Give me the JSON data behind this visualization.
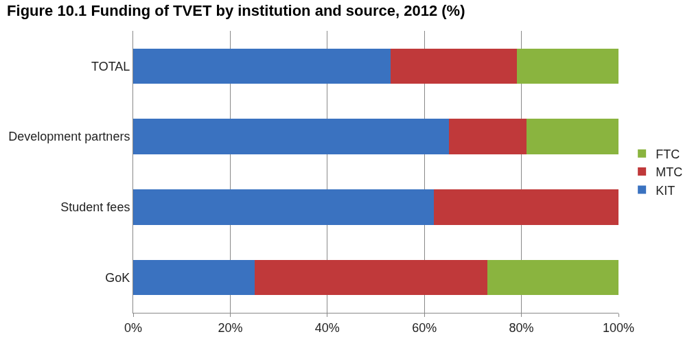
{
  "chart_data": {
    "type": "bar",
    "orientation": "horizontal",
    "stacked": true,
    "title": "Figure 10.1 Funding of TVET by institution and source, 2012 (%)",
    "categories": [
      "TOTAL",
      "Development partners",
      "Student fees",
      "GoK"
    ],
    "series": [
      {
        "name": "KIT",
        "color": "#3a72c0",
        "values": [
          53,
          65,
          62,
          25
        ]
      },
      {
        "name": "MTC",
        "color": "#c0393a",
        "values": [
          26,
          16,
          38,
          48
        ]
      },
      {
        "name": "FTC",
        "color": "#8ab43f",
        "values": [
          21,
          19,
          0,
          27
        ]
      }
    ],
    "xlim": [
      0,
      100
    ],
    "xticks": [
      {
        "value": 0,
        "label": "0%"
      },
      {
        "value": 20,
        "label": "20%"
      },
      {
        "value": 40,
        "label": "40%"
      },
      {
        "value": 60,
        "label": "60%"
      },
      {
        "value": 80,
        "label": "80%"
      },
      {
        "value": 100,
        "label": "100%"
      }
    ],
    "grid": "x",
    "legend": "right"
  }
}
